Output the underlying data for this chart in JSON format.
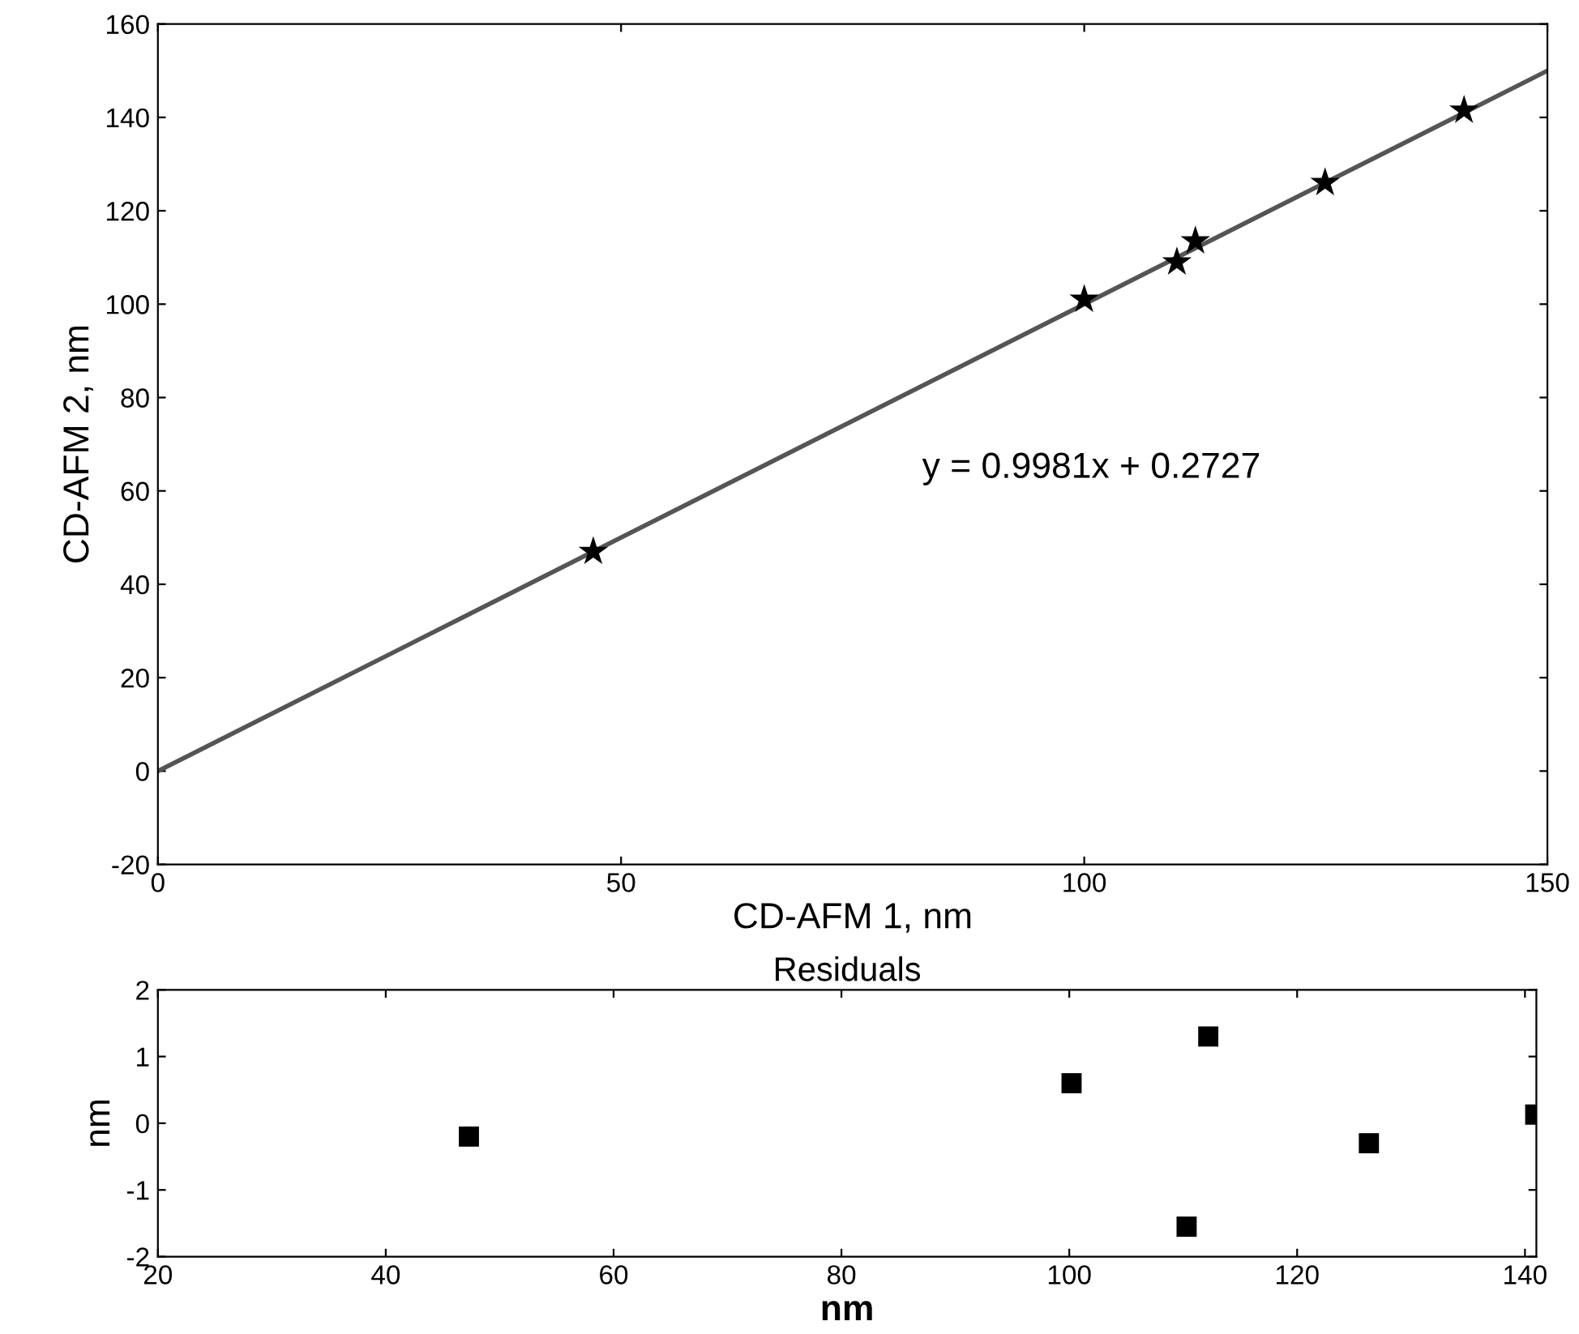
{
  "chart_data": [
    {
      "type": "scatter",
      "xlabel": "CD-AFM 1, nm",
      "ylabel": "CD-AFM 2, nm",
      "xlim": [
        0,
        150
      ],
      "ylim": [
        -20,
        160
      ],
      "xticks": [
        0,
        50,
        100,
        150
      ],
      "yticks": [
        -20,
        0,
        20,
        40,
        60,
        80,
        100,
        120,
        140,
        160
      ],
      "marker": "star",
      "grid": false,
      "legend": false,
      "annotations": [
        "y = 0.9981x + 0.2727"
      ],
      "series": [
        {
          "type": "scatter",
          "color": "#000000",
          "x": [
            47,
            100,
            110,
            112,
            126,
            141
          ],
          "values": [
            47,
            101,
            109,
            113.5,
            126,
            141.5
          ]
        },
        {
          "type": "line",
          "color": "#555555",
          "marker": "none",
          "x": [
            0,
            150
          ],
          "values": [
            0,
            150
          ]
        }
      ]
    },
    {
      "type": "scatter",
      "title": "Residuals",
      "xlabel": "nm",
      "ylabel": "nm",
      "xlim": [
        20,
        141
      ],
      "ylim": [
        -2,
        2
      ],
      "xticks": [
        20,
        40,
        60,
        80,
        100,
        120,
        140
      ],
      "yticks": [
        -2,
        -1,
        0,
        1,
        2
      ],
      "marker": "square",
      "grid": false,
      "legend": false,
      "series": [
        {
          "type": "scatter",
          "color": "#000000",
          "x": [
            47.3,
            100.2,
            110.3,
            112.2,
            126.3,
            140.9
          ],
          "values": [
            -0.2,
            0.6,
            -1.55,
            1.3,
            -0.3,
            0.13
          ]
        }
      ]
    }
  ]
}
